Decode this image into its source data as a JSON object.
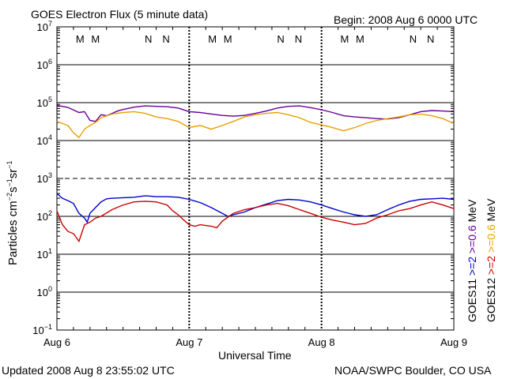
{
  "header": {
    "title": "GOES Electron Flux (5 minute data)",
    "begin": "Begin: 2008 Aug 6 0000 UTC"
  },
  "footer": {
    "updated": "Updated 2008 Aug  8 23:55:02 UTC",
    "source": "NOAA/SWPC Boulder, CO USA"
  },
  "chart_data": {
    "type": "line",
    "title": "GOES Electron Flux (5 minute data)",
    "xlabel": "Universal Time",
    "ylabel": "Particles cm-2s-1sr-1",
    "yscale": "log",
    "ylim": [
      0.1,
      10000000
    ],
    "xlim": [
      0,
      72
    ],
    "x_unit": "hours since 2008 Aug 6 0000 UTC",
    "x_ticks": [
      {
        "x": 0,
        "label": "Aug 6"
      },
      {
        "x": 24,
        "label": "Aug 7"
      },
      {
        "x": 48,
        "label": "Aug 8"
      },
      {
        "x": 72,
        "label": "Aug 9"
      }
    ],
    "y_ticks": [
      {
        "exp": 7
      },
      {
        "exp": 6
      },
      {
        "exp": 5
      },
      {
        "exp": 4
      },
      {
        "exp": 3
      },
      {
        "exp": 2
      },
      {
        "exp": 1
      },
      {
        "exp": 0
      },
      {
        "exp": -1
      }
    ],
    "y_tick_base": "10",
    "threshold_dashed": 1000,
    "grid": "horizontal at each decade",
    "markers": [
      {
        "x": 4.2,
        "label": "M",
        "color": "#cc0000"
      },
      {
        "x": 7.0,
        "label": "M",
        "color": "#0000cc"
      },
      {
        "x": 16.6,
        "label": "N",
        "color": "#cc0000"
      },
      {
        "x": 19.8,
        "label": "N",
        "color": "#0000cc"
      },
      {
        "x": 28.2,
        "label": "M",
        "color": "#cc0000"
      },
      {
        "x": 31.0,
        "label": "M",
        "color": "#0000cc"
      },
      {
        "x": 40.6,
        "label": "N",
        "color": "#cc0000"
      },
      {
        "x": 43.8,
        "label": "N",
        "color": "#0000cc"
      },
      {
        "x": 52.2,
        "label": "M",
        "color": "#cc0000"
      },
      {
        "x": 55.0,
        "label": "M",
        "color": "#0000cc"
      },
      {
        "x": 64.6,
        "label": "N",
        "color": "#cc0000"
      },
      {
        "x": 67.8,
        "label": "N",
        "color": "#0000cc"
      }
    ],
    "legend": {
      "placement": "right, vertical text",
      "col1": [
        {
          "text": "GOES11",
          "color": "#000000"
        },
        {
          "text": ">=2",
          "color": "#0000cc"
        },
        {
          "text": ">=0.6",
          "color": "#660099"
        }
      ],
      "col2": [
        {
          "text": "GOES12",
          "color": "#000000"
        },
        {
          "text": ">=2",
          "color": "#cc0000"
        },
        {
          "text": ">=0.6",
          "color": "#e8a000"
        }
      ],
      "unit": "MeV"
    },
    "series": [
      {
        "satellite": "GOES11",
        "energy": ">=0.6 MeV",
        "color": "#660099",
        "x": [
          0,
          2,
          4,
          5,
          6,
          7,
          8,
          9,
          10,
          11,
          12,
          14,
          16,
          18,
          20,
          22,
          24,
          26,
          28,
          30,
          32,
          34,
          36,
          38,
          40,
          42,
          44,
          46,
          48,
          50,
          52,
          54,
          56,
          58,
          60,
          62,
          64,
          66,
          68,
          70,
          72
        ],
        "y": [
          85000,
          75000,
          55000,
          58000,
          34000,
          32000,
          48000,
          45000,
          52000,
          60000,
          66000,
          76000,
          82000,
          80000,
          78000,
          72000,
          58000,
          55000,
          50000,
          46000,
          44000,
          46000,
          52000,
          60000,
          72000,
          80000,
          82000,
          74000,
          65000,
          55000,
          45000,
          42000,
          40000,
          38000,
          37000,
          40000,
          48000,
          58000,
          62000,
          60000,
          58000
        ]
      },
      {
        "satellite": "GOES12",
        "energy": ">=0.6 MeV",
        "color": "#e8a000",
        "x": [
          0,
          2,
          3,
          4,
          5,
          6,
          7,
          8,
          10,
          12,
          14,
          16,
          18,
          20,
          22,
          24,
          26,
          28,
          30,
          32,
          34,
          36,
          38,
          40,
          42,
          44,
          46,
          48,
          50,
          52,
          54,
          56,
          58,
          60,
          62,
          64,
          66,
          68,
          70,
          72
        ],
        "y": [
          32000,
          25000,
          16000,
          12000,
          20000,
          25000,
          30000,
          40000,
          50000,
          55000,
          58000,
          52000,
          42000,
          38000,
          32000,
          22000,
          25000,
          20000,
          25000,
          32000,
          42000,
          48000,
          52000,
          55000,
          48000,
          40000,
          30000,
          26000,
          22000,
          18000,
          22000,
          28000,
          34000,
          38000,
          42000,
          48000,
          50000,
          45000,
          38000,
          28000
        ]
      },
      {
        "satellite": "GOES11",
        "energy": ">=2 MeV",
        "color": "#0000cc",
        "x": [
          0,
          1,
          2,
          3,
          4,
          5,
          5.5,
          6,
          7,
          8,
          9,
          10,
          12,
          14,
          16,
          18,
          20,
          22,
          24,
          26,
          28,
          30,
          31,
          32,
          34,
          36,
          38,
          40,
          42,
          44,
          46,
          48,
          50,
          52,
          54,
          56,
          58,
          60,
          62,
          64,
          66,
          68,
          70,
          72
        ],
        "y": [
          400,
          300,
          260,
          220,
          120,
          90,
          70,
          120,
          170,
          240,
          290,
          300,
          310,
          320,
          350,
          330,
          330,
          320,
          280,
          230,
          170,
          120,
          100,
          110,
          130,
          170,
          210,
          260,
          280,
          270,
          240,
          200,
          160,
          130,
          110,
          100,
          110,
          150,
          200,
          250,
          280,
          290,
          300,
          280
        ]
      },
      {
        "satellite": "GOES12",
        "energy": ">=2 MeV",
        "color": "#cc0000",
        "x": [
          0,
          1,
          2,
          3,
          4,
          5,
          6,
          7,
          8,
          10,
          12,
          14,
          16,
          18,
          20,
          21,
          22,
          23,
          24,
          25,
          26,
          28,
          29,
          30,
          32,
          34,
          36,
          38,
          40,
          42,
          44,
          46,
          48,
          50,
          52,
          54,
          56,
          58,
          60,
          62,
          64,
          66,
          68,
          70,
          72
        ],
        "y": [
          140,
          60,
          40,
          35,
          22,
          60,
          70,
          90,
          100,
          150,
          200,
          240,
          250,
          240,
          200,
          140,
          110,
          80,
          60,
          55,
          60,
          55,
          50,
          75,
          120,
          150,
          170,
          200,
          220,
          190,
          150,
          120,
          95,
          80,
          70,
          60,
          65,
          90,
          110,
          140,
          160,
          200,
          240,
          200,
          160
        ]
      }
    ]
  }
}
